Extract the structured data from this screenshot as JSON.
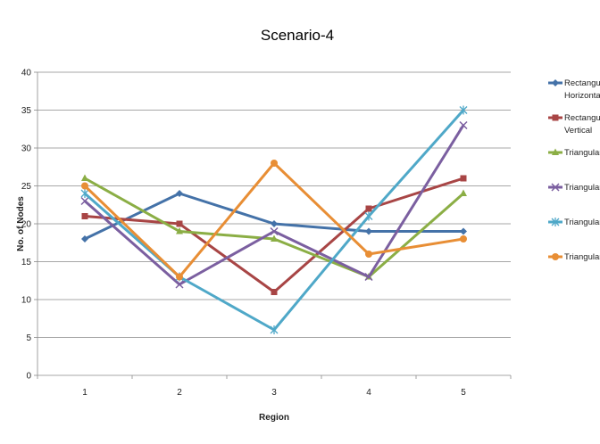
{
  "chart_data": {
    "type": "line",
    "title": "Scenario-4",
    "xlabel": "Region",
    "ylabel": "No. of Nodes",
    "categories": [
      "1",
      "2",
      "3",
      "4",
      "5"
    ],
    "ylim": [
      0,
      40
    ],
    "yticks": [
      "0",
      "5",
      "10",
      "15",
      "20",
      "25",
      "30",
      "35",
      "40"
    ],
    "grid": "horizontal",
    "legend_position": "right",
    "series": [
      {
        "name": "Rectangular Horizontal",
        "name_lines": [
          "Rectangular",
          "Horizontal"
        ],
        "values": [
          18,
          24,
          20,
          19,
          19
        ],
        "color": "#4472A8",
        "marker": "diamond"
      },
      {
        "name": "Rectangular Vertical",
        "name_lines": [
          "Rectangular",
          "Vertical"
        ],
        "values": [
          21,
          20,
          11,
          22,
          26
        ],
        "color": "#A84545",
        "marker": "square"
      },
      {
        "name": "Triangular A",
        "name_lines": [
          "Triangular A"
        ],
        "values": [
          26,
          19,
          18,
          13,
          24
        ],
        "color": "#8BAE45",
        "marker": "triangle"
      },
      {
        "name": "Triangular B",
        "name_lines": [
          "Triangular B"
        ],
        "values": [
          23,
          12,
          19,
          13,
          33
        ],
        "color": "#7B5FA0",
        "marker": "x"
      },
      {
        "name": "Triangular C",
        "name_lines": [
          "Triangular C"
        ],
        "values": [
          24,
          13,
          6,
          21,
          35
        ],
        "color": "#4FA8C8",
        "marker": "star"
      },
      {
        "name": "Triangular D",
        "name_lines": [
          "Triangular D"
        ],
        "values": [
          25,
          13,
          28,
          16,
          18
        ],
        "color": "#E88E35",
        "marker": "circle"
      }
    ]
  }
}
